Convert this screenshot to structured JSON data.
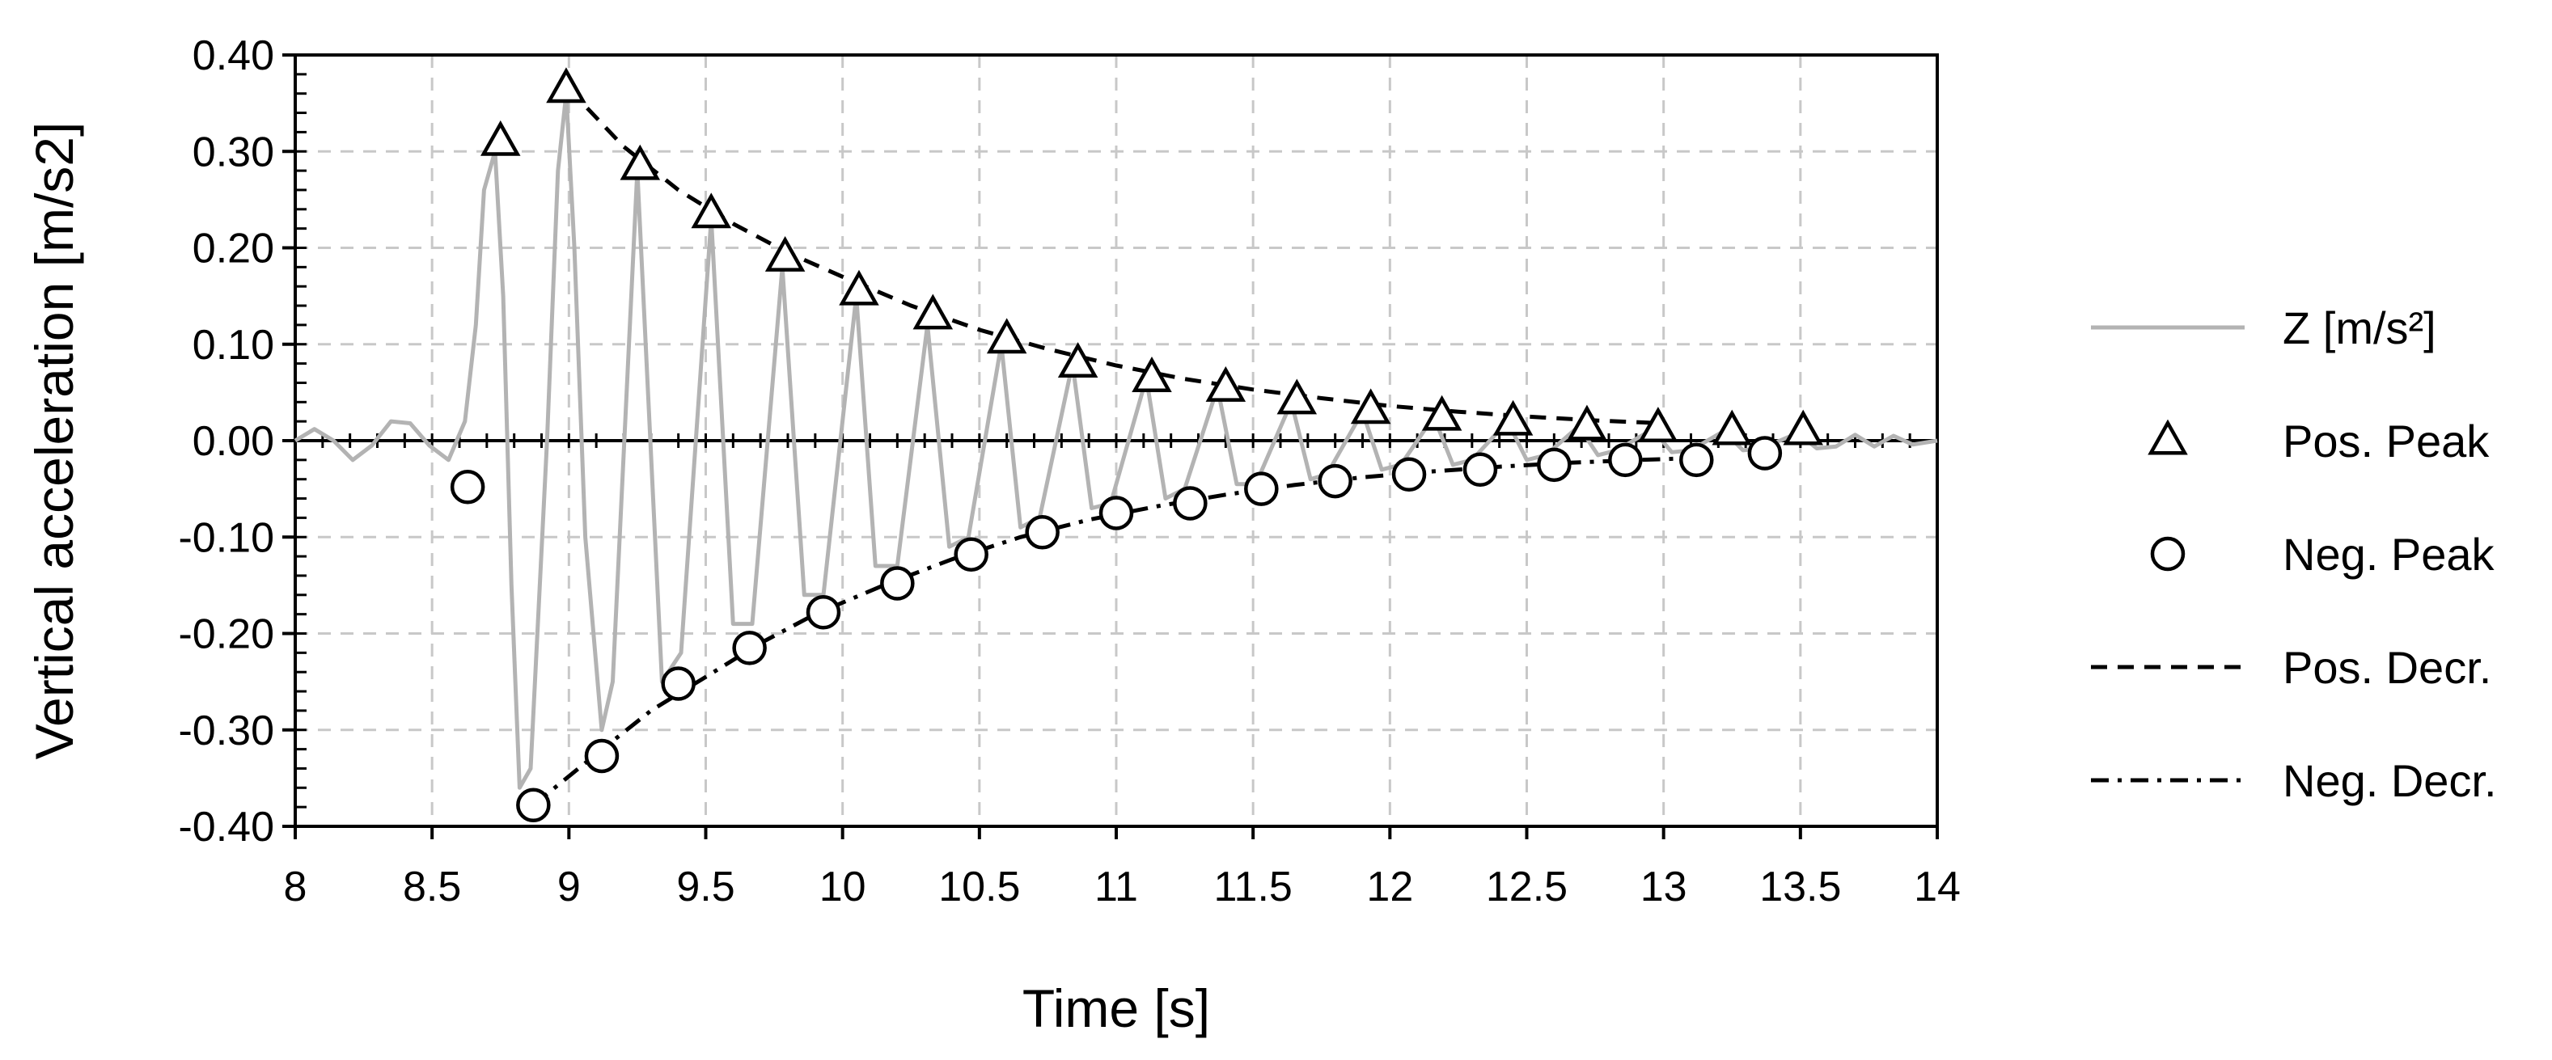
{
  "chart_data": {
    "type": "line",
    "xlabel": "Time [s]",
    "ylabel": "Vertical acceleration [m/s2]",
    "xlim": [
      8,
      14
    ],
    "ylim": [
      -0.4,
      0.4
    ],
    "x_ticks": [
      8,
      8.5,
      9,
      9.5,
      10,
      10.5,
      11,
      11.5,
      12,
      12.5,
      13,
      13.5,
      14
    ],
    "x_tick_labels": [
      "8",
      "8.5",
      "9",
      "9.5",
      "10",
      "10.5",
      "11",
      "11.5",
      "12",
      "12.5",
      "13",
      "13.5",
      "14"
    ],
    "y_ticks": [
      -0.4,
      -0.3,
      -0.2,
      -0.1,
      0,
      0.1,
      0.2,
      0.3,
      0.4
    ],
    "y_tick_labels": [
      "-0.40",
      "-0.30",
      "-0.20",
      "-0.10",
      "0.00",
      "0.10",
      "0.20",
      "0.30",
      "0.40"
    ],
    "grid": true,
    "legend_position": "right",
    "legend": [
      {
        "label": "Z [m/s²]",
        "style": "line",
        "color": "#b3b3b3"
      },
      {
        "label": "Pos. Peak",
        "style": "triangle-marker",
        "color": "#000000"
      },
      {
        "label": "Neg. Peak",
        "style": "circle-marker",
        "color": "#000000"
      },
      {
        "label": "Pos. Decr.",
        "style": "dashed-line",
        "color": "#000000"
      },
      {
        "label": "Neg. Decr.",
        "style": "dash-dot-line",
        "color": "#000000"
      }
    ],
    "series": [
      {
        "name": "Z [m/s²]",
        "kind": "signal",
        "color": "#b3b3b3",
        "x": [
          8.0,
          8.07,
          8.14,
          8.21,
          8.28,
          8.35,
          8.42,
          8.49,
          8.56,
          8.62,
          8.66,
          8.69,
          8.73,
          8.76,
          8.79,
          8.82,
          8.86,
          8.92,
          8.96,
          8.99,
          9.02,
          9.06,
          9.12,
          9.16,
          9.25,
          9.34,
          9.41,
          9.52,
          9.6,
          9.67,
          9.78,
          9.86,
          9.93,
          10.05,
          10.12,
          10.2,
          10.31,
          10.39,
          10.46,
          10.58,
          10.65,
          10.72,
          10.84,
          10.91,
          10.98,
          11.11,
          11.18,
          11.25,
          11.37,
          11.44,
          11.51,
          11.64,
          11.71,
          11.77,
          11.9,
          11.97,
          12.04,
          12.16,
          12.23,
          12.3,
          12.43,
          12.5,
          12.57,
          12.69,
          12.76,
          12.83,
          12.96,
          13.03,
          13.1,
          13.22,
          13.29,
          13.36,
          13.49,
          13.56,
          13.63,
          13.7,
          13.77,
          13.84,
          13.91,
          14.0
        ],
        "values": [
          0.0,
          0.012,
          0.0,
          -0.02,
          -0.005,
          0.02,
          0.018,
          -0.005,
          -0.02,
          0.02,
          0.12,
          0.26,
          0.3,
          0.15,
          -0.15,
          -0.36,
          -0.34,
          0.0,
          0.28,
          0.36,
          0.2,
          -0.1,
          -0.3,
          -0.25,
          0.28,
          -0.25,
          -0.22,
          0.23,
          -0.19,
          -0.19,
          0.18,
          -0.16,
          -0.16,
          0.15,
          -0.13,
          -0.13,
          0.12,
          -0.11,
          -0.1,
          0.1,
          -0.09,
          -0.08,
          0.08,
          -0.07,
          -0.065,
          0.065,
          -0.06,
          -0.05,
          0.055,
          -0.045,
          -0.045,
          0.04,
          -0.04,
          -0.035,
          0.03,
          -0.03,
          -0.025,
          0.025,
          -0.025,
          -0.02,
          0.02,
          -0.02,
          -0.015,
          0.015,
          -0.015,
          -0.01,
          0.012,
          -0.012,
          -0.01,
          0.01,
          -0.01,
          -0.008,
          0.008,
          -0.008,
          -0.006,
          0.006,
          -0.006,
          0.005,
          -0.004,
          0.0
        ]
      },
      {
        "name": "Pos. Peak",
        "kind": "triangle-marker",
        "x": [
          8.75,
          8.99,
          9.26,
          9.52,
          9.79,
          10.06,
          10.33,
          10.6,
          10.86,
          11.13,
          11.4,
          11.66,
          11.93,
          12.19,
          12.45,
          12.72,
          12.98,
          13.25,
          13.51
        ],
        "values": [
          0.31,
          0.365,
          0.285,
          0.235,
          0.19,
          0.155,
          0.13,
          0.105,
          0.08,
          0.065,
          0.055,
          0.042,
          0.032,
          0.025,
          0.02,
          0.015,
          0.013,
          0.01,
          0.01
        ]
      },
      {
        "name": "Neg. Peak",
        "kind": "circle-marker",
        "x": [
          8.63,
          8.87,
          9.12,
          9.4,
          9.66,
          9.93,
          10.2,
          10.47,
          10.73,
          11.0,
          11.27,
          11.53,
          11.8,
          12.07,
          12.33,
          12.6,
          12.86,
          13.12,
          13.37
        ],
        "values": [
          -0.048,
          -0.378,
          -0.327,
          -0.252,
          -0.215,
          -0.178,
          -0.148,
          -0.118,
          -0.095,
          -0.075,
          -0.065,
          -0.05,
          -0.042,
          -0.035,
          -0.03,
          -0.025,
          -0.02,
          -0.02,
          -0.013
        ]
      },
      {
        "name": "Pos. Decr.",
        "kind": "dashed-line",
        "x": [
          9.0,
          9.2,
          9.4,
          9.6,
          9.8,
          10.0,
          10.25,
          10.5,
          10.75,
          11.0,
          11.25,
          11.5,
          11.75,
          12.0,
          12.25,
          12.5,
          12.75,
          13.0
        ],
        "values": [
          0.365,
          0.305,
          0.26,
          0.225,
          0.195,
          0.17,
          0.14,
          0.115,
          0.095,
          0.078,
          0.064,
          0.053,
          0.044,
          0.036,
          0.03,
          0.025,
          0.021,
          0.018
        ]
      },
      {
        "name": "Neg. Decr.",
        "kind": "dash-dot-line",
        "x": [
          8.87,
          9.1,
          9.3,
          9.5,
          9.7,
          9.9,
          10.15,
          10.4,
          10.65,
          10.9,
          11.15,
          11.4,
          11.65,
          11.9,
          12.15,
          12.4,
          12.65,
          12.9,
          13.12
        ],
        "values": [
          -0.378,
          -0.325,
          -0.28,
          -0.245,
          -0.21,
          -0.18,
          -0.15,
          -0.123,
          -0.1,
          -0.082,
          -0.068,
          -0.056,
          -0.046,
          -0.038,
          -0.032,
          -0.027,
          -0.023,
          -0.02,
          -0.018
        ]
      }
    ]
  }
}
